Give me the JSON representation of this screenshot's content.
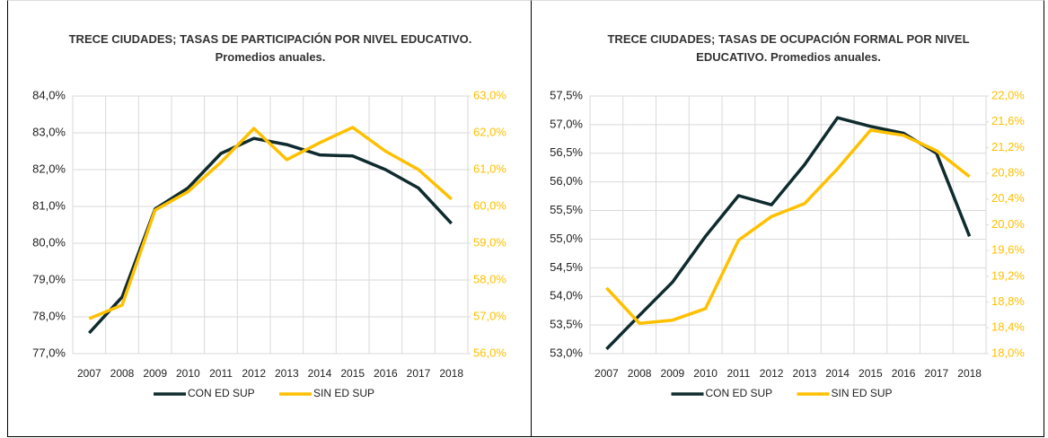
{
  "chart_data": [
    {
      "type": "line",
      "title": "TRECE CIUDADES; TASAS DE PARTICIPACIÓN POR NIVEL EDUCATIVO. Promedios anuales.",
      "categories": [
        "2007",
        "2008",
        "2009",
        "2010",
        "2011",
        "2012",
        "2013",
        "2014",
        "2015",
        "2016",
        "2017",
        "2018"
      ],
      "series": [
        {
          "name": "CON ED SUP",
          "color": "#0f2b2e",
          "values": [
            77.56,
            78.54,
            80.93,
            81.5,
            82.44,
            82.85,
            82.68,
            82.4,
            82.37,
            82.0,
            81.5,
            80.54
          ]
        },
        {
          "name": "SIN ED SUP",
          "color": "#ffc000",
          "axis": "y2",
          "values": [
            56.95,
            57.32,
            59.9,
            60.4,
            61.2,
            62.12,
            61.27,
            61.73,
            62.15,
            61.5,
            61.0,
            60.2
          ]
        }
      ],
      "ylim": [
        77,
        84
      ],
      "yticks": [
        {
          "value": 77,
          "label": "77,0%"
        },
        {
          "value": 78,
          "label": "78,0%"
        },
        {
          "value": 79,
          "label": "79,0%"
        },
        {
          "value": 80,
          "label": "80,0%"
        },
        {
          "value": 81,
          "label": "81,0%"
        },
        {
          "value": 82,
          "label": "82,0%"
        },
        {
          "value": 83,
          "label": "83,0%"
        },
        {
          "value": 84,
          "label": "84,0%"
        }
      ],
      "y2lim": [
        56,
        63
      ],
      "y2ticks": [
        {
          "value": 56,
          "label": "56,0%"
        },
        {
          "value": 57,
          "label": "57,0%"
        },
        {
          "value": 58,
          "label": "58,0%"
        },
        {
          "value": 59,
          "label": "59,0%"
        },
        {
          "value": 60,
          "label": "60,0%"
        },
        {
          "value": 61,
          "label": "61,0%"
        },
        {
          "value": 62,
          "label": "62,0%"
        },
        {
          "value": 63,
          "label": "63,0%"
        }
      ],
      "grid": true,
      "legend": "bottom"
    },
    {
      "type": "line",
      "title": "TRECE CIUDADES; TASAS DE OCUPACIÓN FORMAL POR NIVEL EDUCATIVO. Promedios anuales.",
      "categories": [
        "2007",
        "2008",
        "2009",
        "2010",
        "2011",
        "2012",
        "2013",
        "2014",
        "2015",
        "2016",
        "2017",
        "2018"
      ],
      "series": [
        {
          "name": "CON ED SUP",
          "color": "#0f2b2e",
          "values": [
            53.08,
            53.67,
            54.25,
            55.05,
            55.76,
            55.6,
            56.3,
            57.12,
            56.97,
            56.85,
            56.5,
            55.05
          ]
        },
        {
          "name": "SIN ED SUP",
          "color": "#ffc000",
          "axis": "y2",
          "values": [
            19.02,
            18.47,
            18.52,
            18.7,
            19.76,
            20.13,
            20.33,
            20.87,
            21.47,
            21.39,
            21.15,
            20.75
          ]
        }
      ],
      "ylim": [
        53,
        57.5
      ],
      "yticks": [
        {
          "value": 53,
          "label": "53,0%"
        },
        {
          "value": 53.5,
          "label": "53,5%"
        },
        {
          "value": 54,
          "label": "54,0%"
        },
        {
          "value": 54.5,
          "label": "54,5%"
        },
        {
          "value": 55,
          "label": "55,0%"
        },
        {
          "value": 55.5,
          "label": "55,5%"
        },
        {
          "value": 56,
          "label": "56,0%"
        },
        {
          "value": 56.5,
          "label": "56,5%"
        },
        {
          "value": 57,
          "label": "57,0%"
        },
        {
          "value": 57.5,
          "label": "57,5%"
        }
      ],
      "y2lim": [
        18,
        22
      ],
      "y2ticks": [
        {
          "value": 18,
          "label": "18,0%"
        },
        {
          "value": 18.4,
          "label": "18,4%"
        },
        {
          "value": 18.8,
          "label": "18,8%"
        },
        {
          "value": 19.2,
          "label": "19,2%"
        },
        {
          "value": 19.6,
          "label": "19,6%"
        },
        {
          "value": 20,
          "label": "20,0%"
        },
        {
          "value": 20.4,
          "label": "20,4%"
        },
        {
          "value": 20.8,
          "label": "20,8%"
        },
        {
          "value": 21.2,
          "label": "21,2%"
        },
        {
          "value": 21.6,
          "label": "21,6%"
        },
        {
          "value": 22,
          "label": "22,0%"
        }
      ],
      "grid": true,
      "legend": "bottom"
    }
  ]
}
